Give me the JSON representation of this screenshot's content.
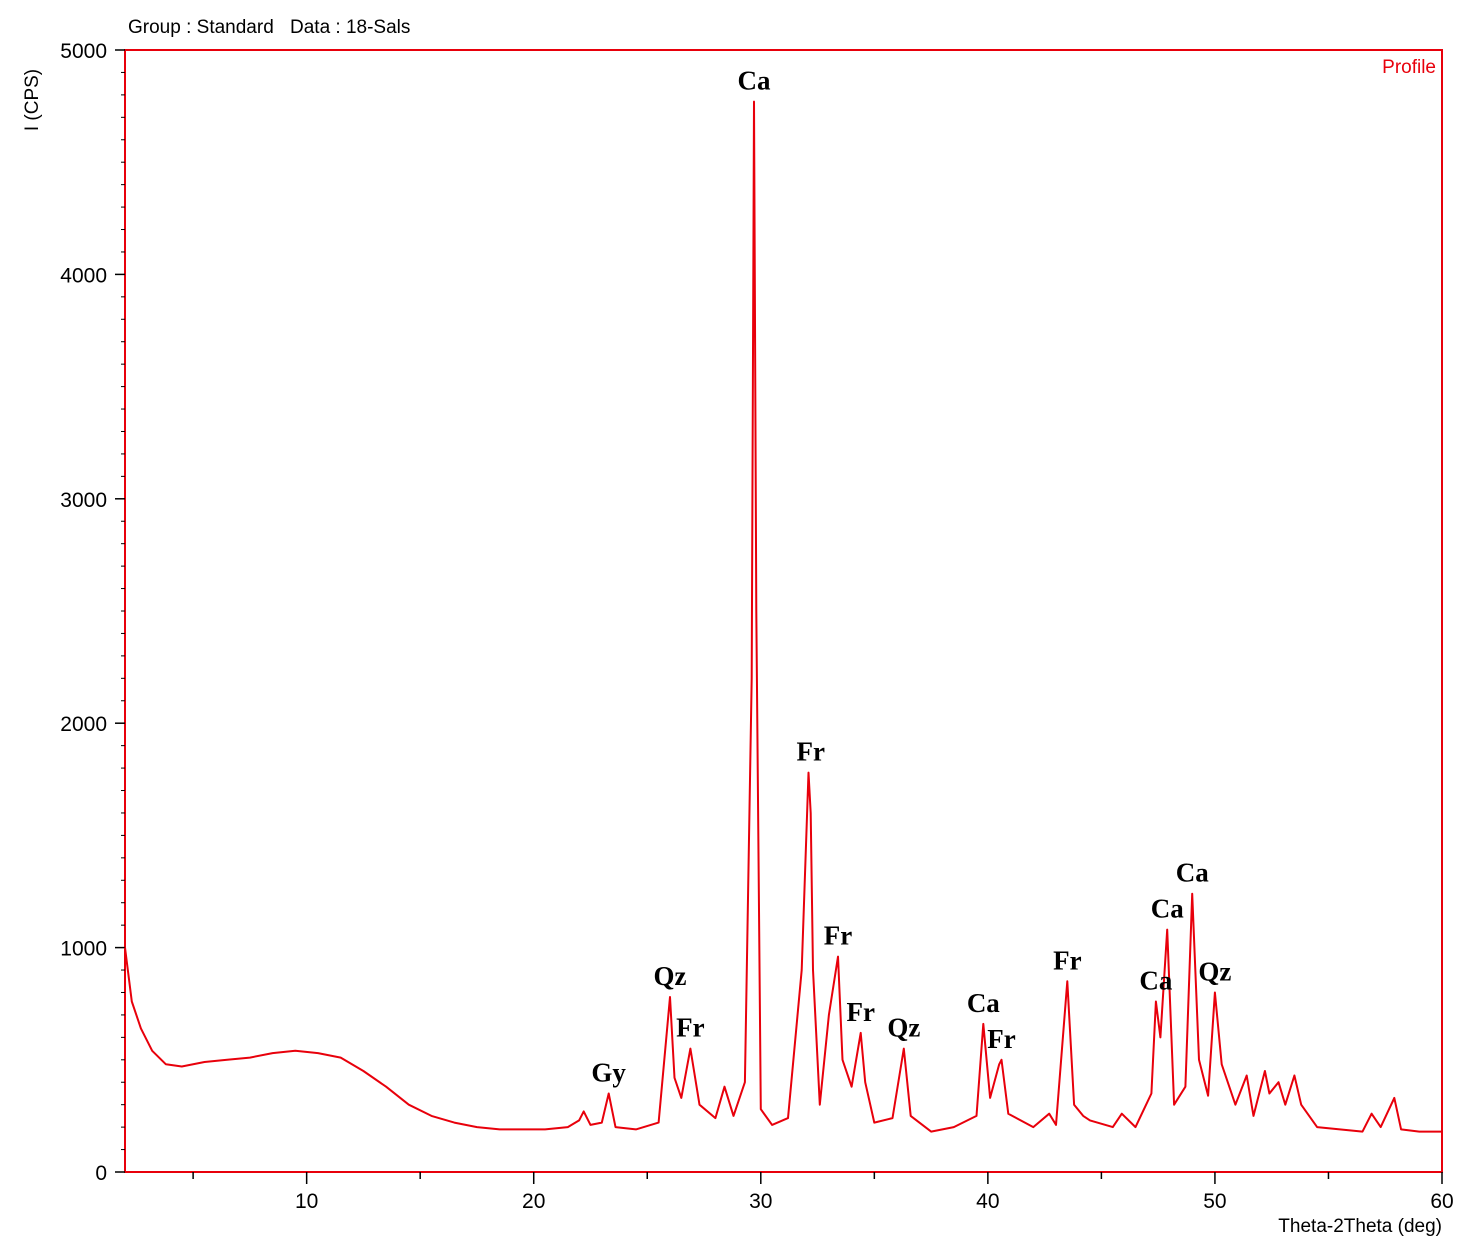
{
  "header": {
    "group_label": "Group : Standard",
    "data_label": "Data : 18-Sals"
  },
  "colors": {
    "profile": "#e8000b",
    "frame": "#e8000b",
    "text": "#000000"
  },
  "chart_data": {
    "type": "line",
    "title": "",
    "xlabel": "Theta-2Theta (deg)",
    "ylabel": "I (CPS)",
    "xlim": [
      2,
      60
    ],
    "ylim": [
      0,
      5000
    ],
    "x_ticks": [
      10,
      20,
      30,
      40,
      50,
      60
    ],
    "y_ticks": [
      0,
      1000,
      2000,
      3000,
      4000,
      5000
    ],
    "grid": false,
    "legend": {
      "position": "top-right",
      "entries": [
        "Profile"
      ]
    },
    "series": [
      {
        "name": "Profile",
        "x": [
          2.0,
          2.3,
          2.7,
          3.2,
          3.8,
          4.5,
          5.5,
          6.5,
          7.5,
          8.5,
          9.5,
          10.5,
          11.5,
          12.5,
          13.5,
          14.5,
          15.5,
          16.5,
          17.5,
          18.5,
          19.5,
          20.5,
          21.5,
          22.0,
          22.2,
          22.5,
          23.0,
          23.3,
          23.6,
          24.5,
          25.5,
          26.0,
          26.2,
          26.5,
          26.9,
          27.3,
          28.0,
          28.4,
          28.8,
          29.3,
          29.6,
          29.7,
          29.8,
          30.0,
          30.5,
          31.2,
          31.8,
          32.1,
          32.2,
          32.3,
          32.6,
          33.0,
          33.4,
          33.6,
          34.0,
          34.4,
          34.6,
          35.0,
          35.8,
          36.3,
          36.6,
          37.5,
          38.5,
          39.5,
          39.8,
          40.1,
          40.5,
          40.6,
          40.9,
          42.0,
          42.7,
          43.0,
          43.5,
          43.8,
          44.2,
          44.5,
          45.5,
          45.9,
          46.5,
          47.2,
          47.4,
          47.6,
          47.9,
          48.2,
          48.7,
          49.0,
          49.3,
          49.7,
          50.0,
          50.3,
          50.9,
          51.4,
          51.7,
          52.2,
          52.4,
          52.8,
          53.1,
          53.5,
          53.8,
          54.5,
          55.5,
          56.5,
          56.9,
          57.3,
          57.9,
          58.2,
          59.0,
          60.0
        ],
        "y": [
          1000,
          760,
          640,
          540,
          480,
          470,
          490,
          500,
          510,
          530,
          540,
          530,
          510,
          450,
          380,
          300,
          250,
          220,
          200,
          190,
          190,
          190,
          200,
          230,
          270,
          210,
          220,
          350,
          200,
          190,
          220,
          780,
          420,
          330,
          550,
          300,
          240,
          380,
          250,
          400,
          2200,
          4770,
          2500,
          280,
          210,
          240,
          900,
          1780,
          1600,
          900,
          300,
          700,
          960,
          500,
          380,
          620,
          400,
          220,
          240,
          550,
          250,
          180,
          200,
          250,
          660,
          330,
          480,
          500,
          260,
          200,
          260,
          210,
          850,
          300,
          250,
          230,
          200,
          260,
          200,
          350,
          760,
          600,
          1080,
          300,
          380,
          1240,
          500,
          340,
          800,
          480,
          300,
          430,
          250,
          450,
          350,
          400,
          300,
          430,
          300,
          200,
          190,
          180,
          260,
          200,
          330,
          190,
          180,
          180
        ]
      }
    ],
    "annotations": [
      {
        "text": "Gy",
        "x": 23.3,
        "y": 350
      },
      {
        "text": "Qz",
        "x": 26.0,
        "y": 780
      },
      {
        "text": "Fr",
        "x": 26.9,
        "y": 550
      },
      {
        "text": "Ca",
        "x": 29.7,
        "y": 4770
      },
      {
        "text": "Fr",
        "x": 32.2,
        "y": 1780
      },
      {
        "text": "Fr",
        "x": 33.4,
        "y": 960
      },
      {
        "text": "Fr",
        "x": 34.4,
        "y": 620
      },
      {
        "text": "Qz",
        "x": 36.3,
        "y": 550
      },
      {
        "text": "Ca",
        "x": 39.8,
        "y": 660
      },
      {
        "text": "Fr",
        "x": 40.6,
        "y": 500
      },
      {
        "text": "Fr",
        "x": 43.5,
        "y": 850
      },
      {
        "text": "Ca",
        "x": 47.4,
        "y": 760
      },
      {
        "text": "Ca",
        "x": 47.9,
        "y": 1080
      },
      {
        "text": "Ca",
        "x": 49.0,
        "y": 1240
      },
      {
        "text": "Qz",
        "x": 50.0,
        "y": 800
      }
    ]
  }
}
